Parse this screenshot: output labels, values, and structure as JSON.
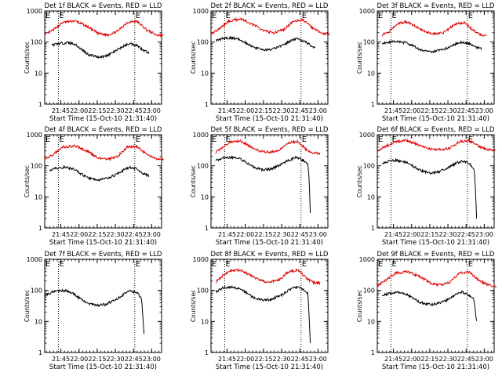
{
  "figure": {
    "tick_labels_y": [
      "1",
      "10",
      "100",
      "1000"
    ],
    "tick_labels_x": [
      "21:45",
      "22:00",
      "22:15",
      "22:30",
      "22:45",
      "23:00"
    ],
    "ylabel": "Counts/sec",
    "xlabel": "Start Time (15-Oct-10 21:31:40)",
    "marker_label": "E"
  },
  "chart_data": [
    {
      "type": "line",
      "title": "Det 1f BLACK = Events, RED = LLD",
      "xlabel": "Start Time (15-Oct-10 21:31:40)",
      "ylabel": "Counts/sec",
      "yscale": "log",
      "ylim": [
        1,
        1000
      ],
      "xlim": [
        "21:31",
        "23:08"
      ],
      "x_ticks": [
        "21:45",
        "22:00",
        "22:15",
        "22:30",
        "22:45",
        "23:00"
      ],
      "vlines": [
        "21:43",
        "22:46"
      ],
      "series": [
        {
          "name": "LLD",
          "color": "#e00000",
          "x_min": [
            0,
            6,
            15,
            25,
            35,
            44,
            52,
            60,
            68,
            76,
            84,
            92,
            98
          ],
          "y": [
            170,
            230,
            430,
            480,
            320,
            190,
            170,
            220,
            430,
            470,
            250,
            170,
            165
          ]
        },
        {
          "name": "Events",
          "color": "#000000",
          "x_min": [
            6,
            12,
            18,
            24,
            30,
            36,
            44,
            50,
            58,
            64,
            70,
            76,
            80,
            86
          ],
          "y": [
            80,
            90,
            95,
            90,
            60,
            40,
            33,
            35,
            50,
            70,
            90,
            80,
            60,
            45
          ]
        }
      ]
    },
    {
      "type": "line",
      "title": "Det 2f BLACK = Events, RED = LLD",
      "xlabel": "Start Time (15-Oct-10 21:31:40)",
      "ylabel": "Counts/sec",
      "yscale": "log",
      "ylim": [
        1,
        1000
      ],
      "xlim": [
        "21:31",
        "23:08"
      ],
      "x_ticks": [
        "21:45",
        "22:00",
        "22:15",
        "22:30",
        "22:45",
        "23:00"
      ],
      "vlines": [
        "21:43",
        "22:46"
      ],
      "series": [
        {
          "name": "LLD",
          "color": "#e00000",
          "x_min": [
            0,
            6,
            15,
            25,
            35,
            44,
            52,
            60,
            68,
            76,
            84,
            92,
            98
          ],
          "y": [
            190,
            250,
            480,
            560,
            360,
            230,
            200,
            250,
            470,
            520,
            280,
            190,
            180
          ]
        },
        {
          "name": "Events",
          "color": "#000000",
          "x_min": [
            4,
            10,
            16,
            24,
            30,
            36,
            44,
            50,
            58,
            64,
            70,
            76,
            80,
            86
          ],
          "y": [
            110,
            130,
            140,
            120,
            90,
            65,
            55,
            58,
            75,
            100,
            130,
            110,
            90,
            65
          ]
        }
      ]
    },
    {
      "type": "line",
      "title": "Det 3f BLACK = Events, RED = LLD",
      "xlabel": "Start Time (15-Oct-10 21:31:40)",
      "ylabel": "Counts/sec",
      "yscale": "log",
      "ylim": [
        1,
        1000
      ],
      "xlim": [
        "21:31",
        "23:08"
      ],
      "x_ticks": [
        "21:45",
        "22:00",
        "22:15",
        "22:30",
        "22:45",
        "23:00"
      ],
      "vlines": [
        "21:43",
        "22:46"
      ],
      "series": [
        {
          "name": "LLD",
          "color": "#e00000",
          "x_min": [
            4,
            10,
            16,
            24,
            32,
            40,
            48,
            56,
            64,
            72,
            78,
            84,
            90
          ],
          "y": [
            170,
            220,
            380,
            450,
            320,
            210,
            180,
            210,
            380,
            430,
            260,
            180,
            150
          ]
        },
        {
          "name": "Events",
          "color": "#000000",
          "x_min": [
            4,
            10,
            16,
            24,
            30,
            36,
            44,
            50,
            58,
            64,
            70,
            76,
            80,
            86
          ],
          "y": [
            90,
            100,
            105,
            95,
            75,
            55,
            50,
            52,
            65,
            85,
            100,
            90,
            75,
            60
          ]
        }
      ]
    },
    {
      "type": "line",
      "title": "Det 4f BLACK = Events, RED = LLD",
      "xlabel": "Start Time (15-Oct-10 21:31:40)",
      "ylabel": "Counts/sec",
      "yscale": "log",
      "ylim": [
        1,
        1000
      ],
      "xlim": [
        "21:31",
        "23:08"
      ],
      "x_ticks": [
        "21:45",
        "22:00",
        "22:15",
        "22:30",
        "22:45",
        "23:00"
      ],
      "vlines": [
        "21:43",
        "22:46"
      ],
      "series": [
        {
          "name": "LLD",
          "color": "#e00000",
          "x_min": [
            0,
            6,
            15,
            25,
            35,
            44,
            52,
            60,
            68,
            76,
            84,
            92,
            98
          ],
          "y": [
            160,
            220,
            400,
            440,
            300,
            180,
            160,
            200,
            400,
            430,
            240,
            165,
            155
          ]
        },
        {
          "name": "Events",
          "color": "#000000",
          "x_min": [
            4,
            10,
            16,
            24,
            30,
            36,
            44,
            50,
            58,
            64,
            70,
            76,
            80,
            86
          ],
          "y": [
            70,
            85,
            90,
            80,
            55,
            40,
            35,
            38,
            50,
            70,
            90,
            80,
            60,
            48
          ]
        }
      ]
    },
    {
      "type": "line",
      "title": "Det 5f BLACK = Events, RED = LLD",
      "xlabel": "Start Time (15-Oct-10 21:31:40)",
      "ylabel": "Counts/sec",
      "yscale": "log",
      "ylim": [
        1,
        1000
      ],
      "xlim": [
        "21:31",
        "23:08"
      ],
      "x_ticks": [
        "21:45",
        "22:00",
        "22:15",
        "22:30",
        "22:45",
        "23:00"
      ],
      "vlines": [
        "21:43",
        "22:46"
      ],
      "series": [
        {
          "name": "LLD",
          "color": "#e00000",
          "x_min": [
            4,
            10,
            16,
            24,
            32,
            40,
            48,
            56,
            64,
            72,
            78,
            84,
            90
          ],
          "y": [
            270,
            400,
            600,
            650,
            430,
            300,
            270,
            320,
            560,
            620,
            350,
            260,
            250
          ]
        },
        {
          "name": "Events",
          "color": "#000000",
          "x_min": [
            4,
            10,
            16,
            24,
            30,
            36,
            44,
            50,
            58,
            64,
            70,
            76,
            80,
            81,
            82
          ],
          "y": [
            150,
            180,
            190,
            170,
            120,
            85,
            75,
            80,
            110,
            150,
            190,
            150,
            110,
            40,
            3
          ]
        }
      ]
    },
    {
      "type": "line",
      "title": "Det 6f BLACK = Events, RED = LLD",
      "xlabel": "Start Time (15-Oct-10 21:31:40)",
      "ylabel": "Counts/sec",
      "yscale": "log",
      "ylim": [
        1,
        1000
      ],
      "xlim": [
        "21:31",
        "23:08"
      ],
      "x_ticks": [
        "21:45",
        "22:00",
        "22:15",
        "22:30",
        "22:45",
        "23:00"
      ],
      "vlines": [
        "21:43",
        "22:46"
      ],
      "series": [
        {
          "name": "LLD",
          "color": "#e00000",
          "x_min": [
            0,
            6,
            15,
            25,
            35,
            44,
            52,
            60,
            68,
            76,
            84,
            92,
            98
          ],
          "y": [
            320,
            400,
            600,
            650,
            450,
            350,
            330,
            370,
            600,
            650,
            420,
            330,
            320
          ]
        },
        {
          "name": "Events",
          "color": "#000000",
          "x_min": [
            4,
            10,
            16,
            24,
            30,
            36,
            44,
            50,
            58,
            64,
            70,
            76,
            80,
            81,
            82
          ],
          "y": [
            120,
            140,
            150,
            130,
            95,
            70,
            60,
            62,
            85,
            115,
            145,
            120,
            80,
            20,
            2
          ]
        }
      ]
    },
    {
      "type": "line",
      "title": "Det 7f BLACK = Events, RED = LLD",
      "xlabel": "Start Time (15-Oct-10 21:31:40)",
      "ylabel": "Counts/sec",
      "yscale": "log",
      "ylim": [
        1,
        1000
      ],
      "xlim": [
        "21:31",
        "23:08"
      ],
      "x_ticks": [
        "21:45",
        "22:00",
        "22:15",
        "22:30",
        "22:45",
        "23:00"
      ],
      "vlines": [
        "21:43",
        "22:46"
      ],
      "series": [
        {
          "name": "Events",
          "color": "#000000",
          "x_min": [
            0,
            6,
            12,
            18,
            24,
            30,
            36,
            44,
            50,
            58,
            64,
            70,
            76,
            80,
            81,
            82
          ],
          "y": [
            65,
            90,
            100,
            95,
            80,
            50,
            38,
            33,
            35,
            48,
            70,
            95,
            85,
            55,
            15,
            4
          ]
        }
      ]
    },
    {
      "type": "line",
      "title": "Det 8f BLACK = Events, RED = LLD",
      "xlabel": "Start Time (15-Oct-10 21:31:40)",
      "ylabel": "Counts/sec",
      "yscale": "log",
      "ylim": [
        1,
        1000
      ],
      "xlim": [
        "21:31",
        "23:08"
      ],
      "x_ticks": [
        "21:45",
        "22:00",
        "22:15",
        "22:30",
        "22:45",
        "23:00"
      ],
      "vlines": [
        "21:43",
        "22:46"
      ],
      "series": [
        {
          "name": "LLD",
          "color": "#e00000",
          "x_min": [
            4,
            10,
            16,
            24,
            32,
            40,
            48,
            56,
            64,
            72,
            78,
            84,
            90
          ],
          "y": [
            190,
            300,
            420,
            450,
            320,
            210,
            180,
            220,
            400,
            450,
            260,
            180,
            175
          ]
        },
        {
          "name": "Events",
          "color": "#000000",
          "x_min": [
            4,
            10,
            16,
            24,
            30,
            36,
            44,
            50,
            58,
            64,
            70,
            76,
            80,
            81,
            82
          ],
          "y": [
            90,
            120,
            130,
            115,
            80,
            55,
            48,
            52,
            70,
            100,
            130,
            110,
            80,
            15,
            2
          ]
        }
      ]
    },
    {
      "type": "line",
      "title": "Det 9f BLACK = Events, RED = LLD",
      "xlabel": "Start Time (15-Oct-10 21:31:40)",
      "ylabel": "Counts/sec",
      "yscale": "log",
      "ylim": [
        1,
        1000
      ],
      "xlim": [
        "21:31",
        "23:08"
      ],
      "x_ticks": [
        "21:45",
        "22:00",
        "22:15",
        "22:30",
        "22:45",
        "23:00"
      ],
      "vlines": [
        "21:43",
        "22:46"
      ],
      "series": [
        {
          "name": "LLD",
          "color": "#e00000",
          "x_min": [
            0,
            6,
            15,
            25,
            35,
            44,
            52,
            60,
            68,
            76,
            84,
            92,
            98
          ],
          "y": [
            140,
            200,
            360,
            400,
            280,
            170,
            150,
            180,
            360,
            390,
            210,
            150,
            130
          ]
        },
        {
          "name": "Events",
          "color": "#000000",
          "x_min": [
            4,
            10,
            16,
            24,
            30,
            36,
            44,
            50,
            58,
            64,
            70,
            76,
            80,
            81,
            82
          ],
          "y": [
            70,
            80,
            85,
            75,
            55,
            40,
            35,
            38,
            50,
            70,
            90,
            70,
            50,
            20,
            10
          ]
        }
      ]
    }
  ]
}
